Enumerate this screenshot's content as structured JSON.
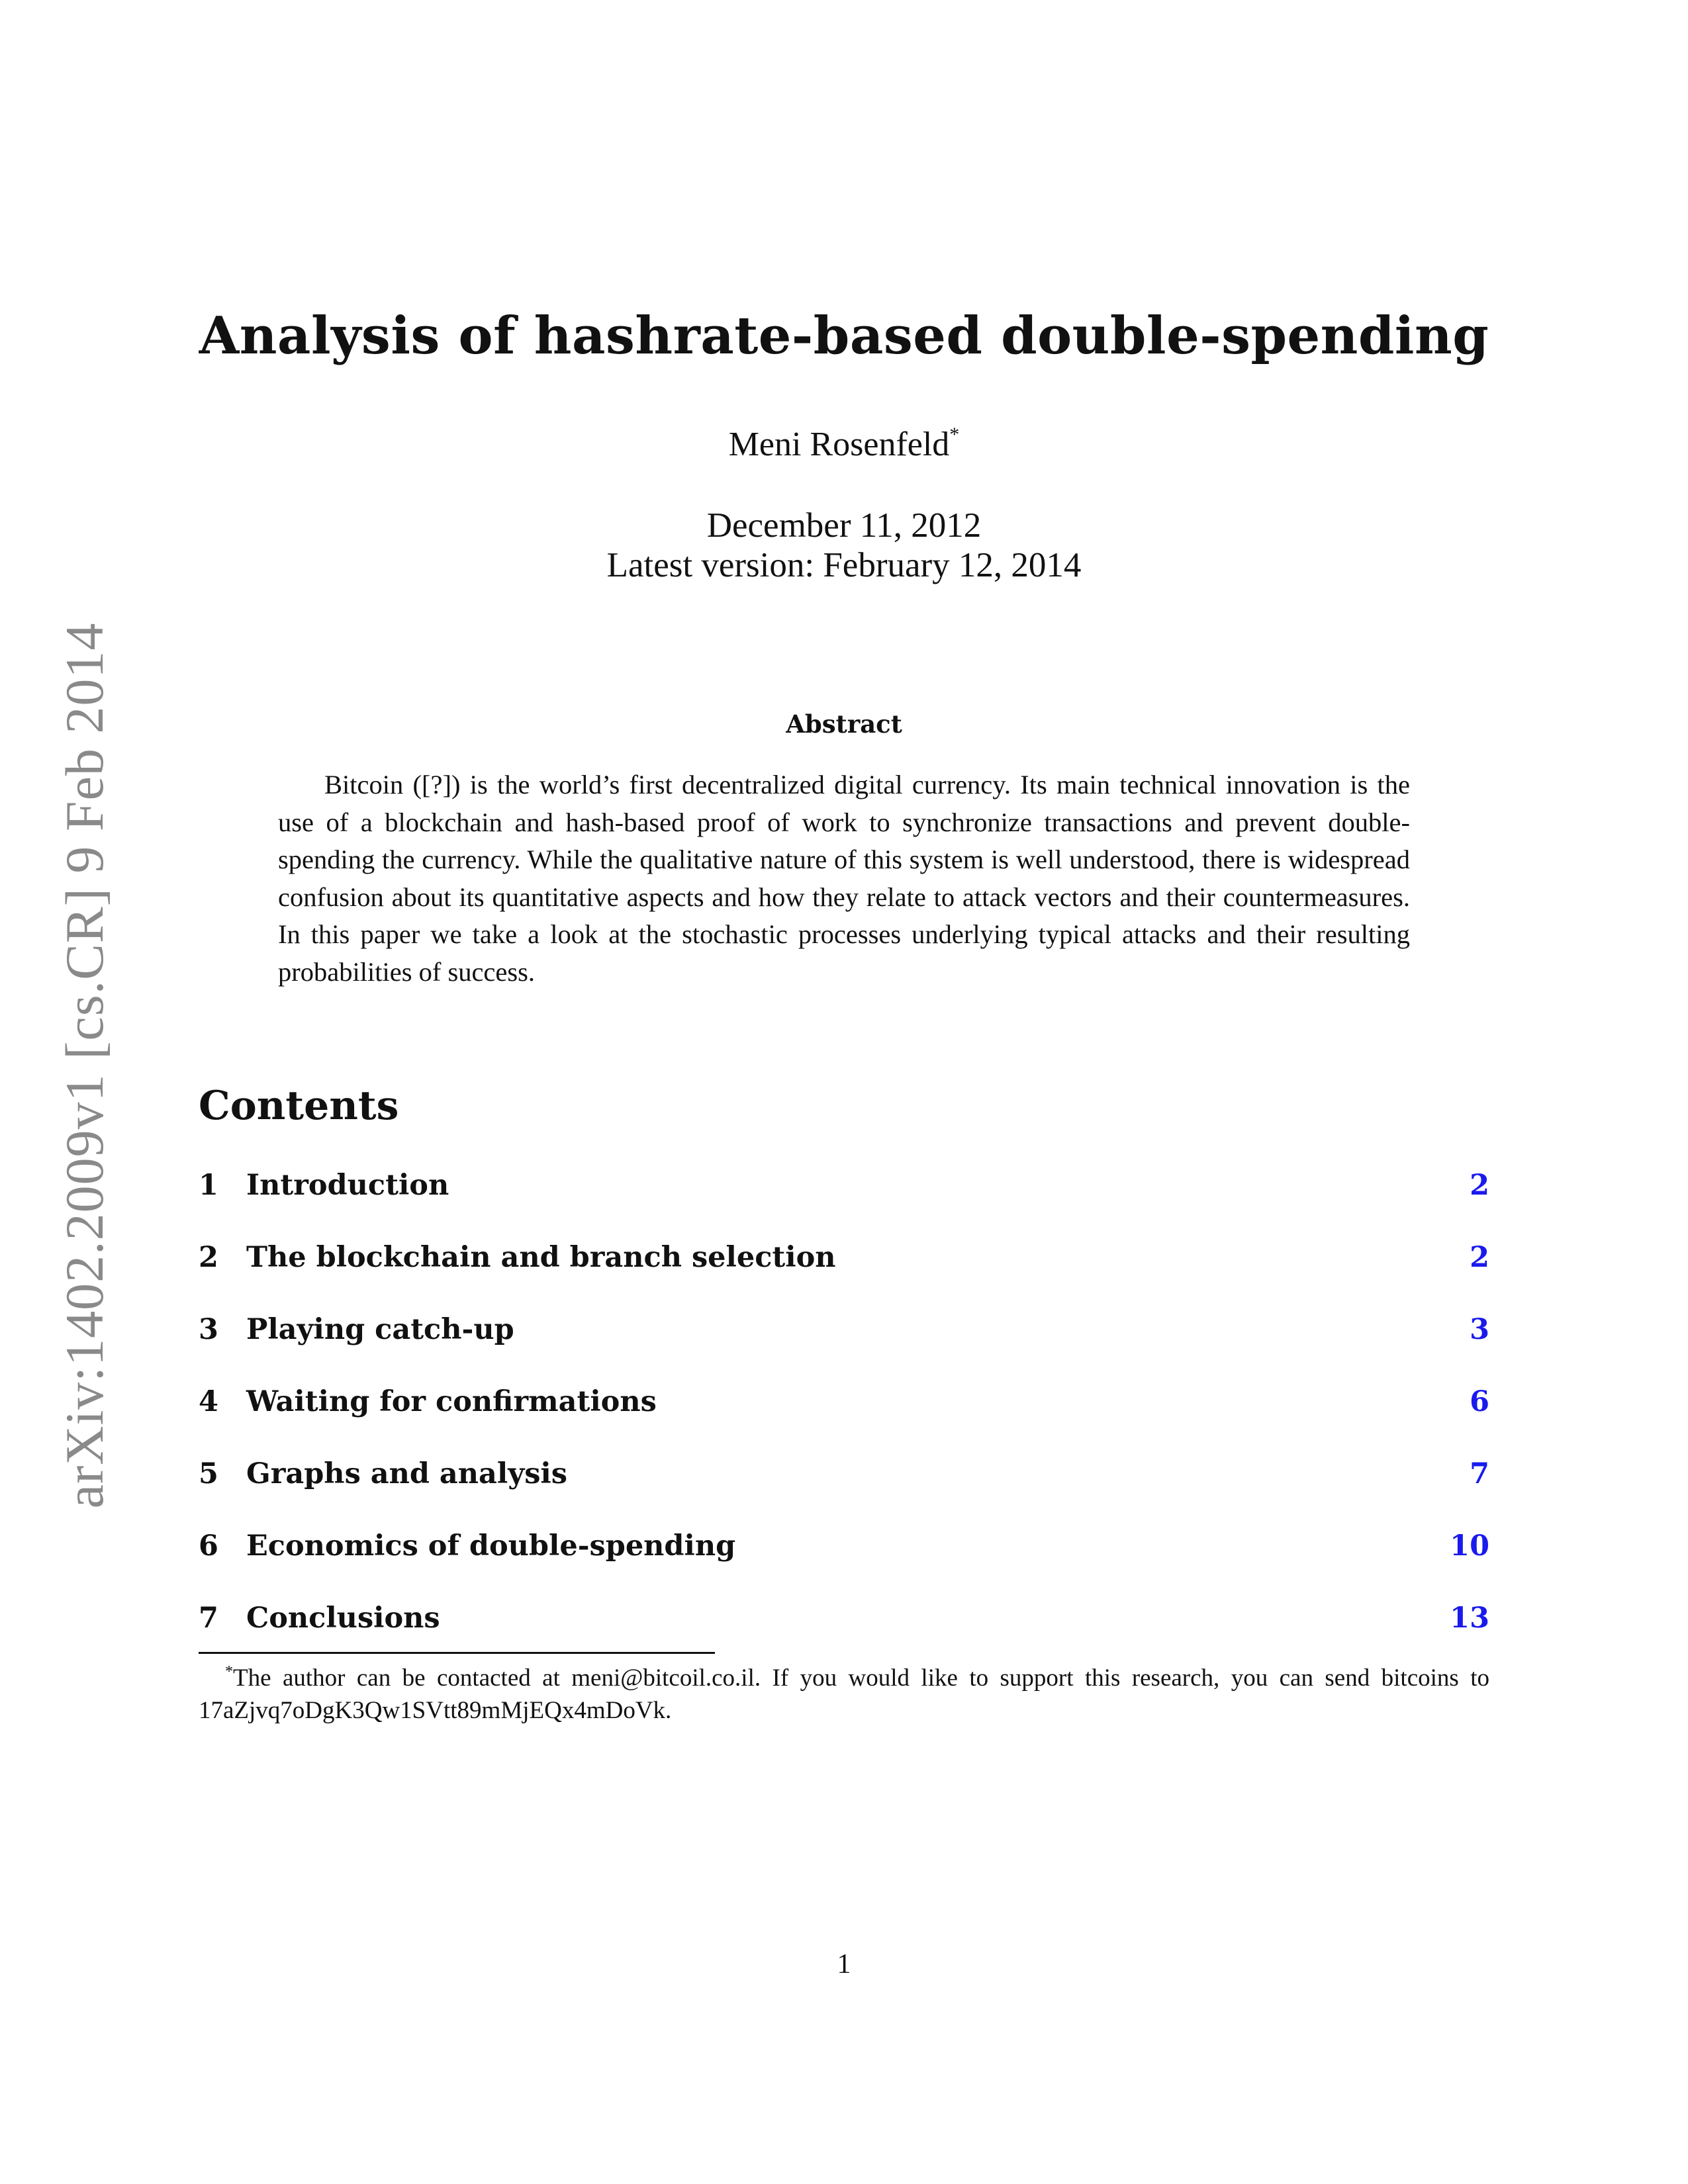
{
  "arxiv_stamp": "arXiv:1402.2009v1  [cs.CR]  9 Feb 2014",
  "title": "Analysis of hashrate-based double-spending",
  "author": {
    "name": "Meni Rosenfeld",
    "footnote_mark": "*"
  },
  "dates": {
    "date": "December 11, 2012",
    "latest_version": "Latest version: February 12, 2014"
  },
  "abstract": {
    "heading": "Abstract",
    "body": "Bitcoin ([?]) is the world’s first decentralized digital currency. Its main technical innovation is the use of a blockchain and hash-based proof of work to synchronize transactions and prevent double-spending the currency. While the qualitative nature of this system is well understood, there is widespread confusion about its quantitative aspects and how they relate to attack vectors and their countermeasures. In this paper we take a look at the stochastic processes underlying typical attacks and their resulting probabilities of success."
  },
  "contents": {
    "heading": "Contents",
    "entries": [
      {
        "number": "1",
        "label": "Introduction",
        "page": "2"
      },
      {
        "number": "2",
        "label": "The blockchain and branch selection",
        "page": "2"
      },
      {
        "number": "3",
        "label": "Playing catch-up",
        "page": "3"
      },
      {
        "number": "4",
        "label": "Waiting for confirmations",
        "page": "6"
      },
      {
        "number": "5",
        "label": "Graphs and analysis",
        "page": "7"
      },
      {
        "number": "6",
        "label": "Economics of double-spending",
        "page": "10"
      },
      {
        "number": "7",
        "label": "Conclusions",
        "page": "13"
      }
    ]
  },
  "footnote": {
    "mark": "*",
    "text": "The author can be contacted at meni@bitcoil.co.il. If you would like to support this research, you can send bitcoins to 17aZjvq7oDgK3Qw1SVtt89mMjEQx4mDoVk."
  },
  "page_number": "1",
  "colors": {
    "link_blue": "#1a1aee",
    "stamp_gray": "#8a8a8a",
    "text": "#111111"
  }
}
